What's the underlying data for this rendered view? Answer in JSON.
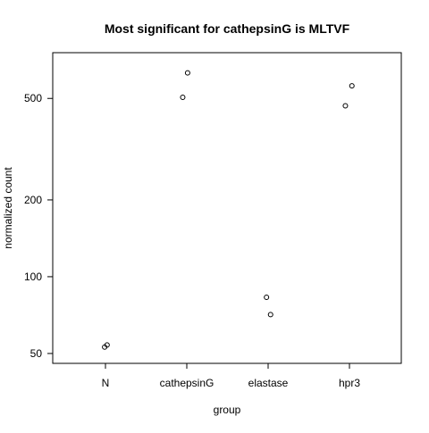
{
  "chart_data": {
    "type": "scatter",
    "title": "Most significant for cathepsinG is MLTVF",
    "xlabel": "group",
    "ylabel": "normalized count",
    "categories": [
      "N",
      "cathepsinG",
      "elastase",
      "hpr3"
    ],
    "y_scale": "log",
    "ylim": [
      48,
      720
    ],
    "yticks": [
      50,
      100,
      200,
      500
    ],
    "ytick_labels": [
      "50",
      "100",
      "200",
      "500"
    ],
    "points": [
      {
        "group": "N",
        "offset": 0.02,
        "y": 54
      },
      {
        "group": "N",
        "offset": -0.01,
        "y": 53
      },
      {
        "group": "cathepsinG",
        "offset": 0.01,
        "y": 630
      },
      {
        "group": "cathepsinG",
        "offset": -0.05,
        "y": 505
      },
      {
        "group": "elastase",
        "offset": -0.02,
        "y": 83
      },
      {
        "group": "elastase",
        "offset": 0.03,
        "y": 71
      },
      {
        "group": "hpr3",
        "offset": 0.03,
        "y": 560
      },
      {
        "group": "hpr3",
        "offset": -0.05,
        "y": 468
      }
    ],
    "grid": false,
    "legend": "none"
  }
}
